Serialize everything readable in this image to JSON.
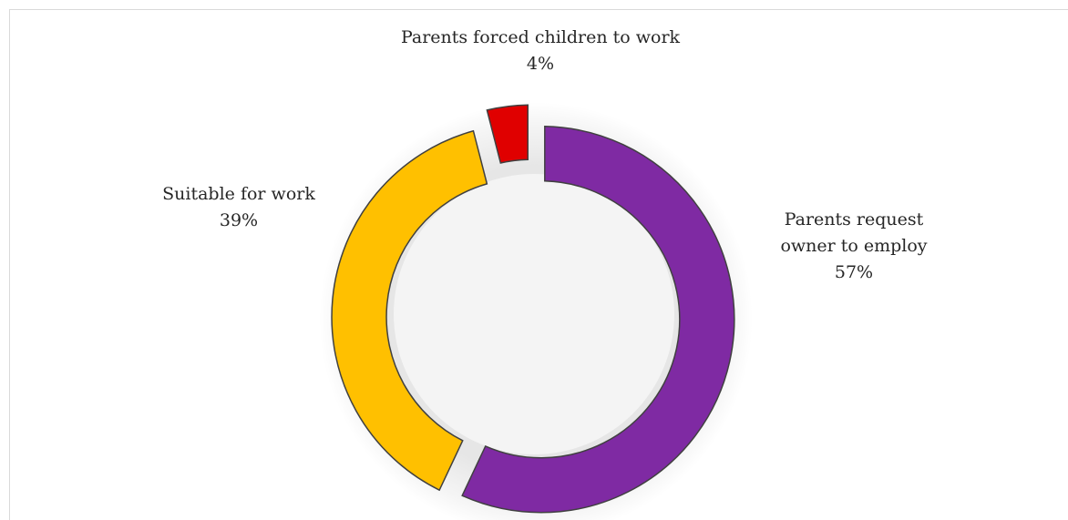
{
  "chart_data": {
    "type": "pie",
    "variant": "donut",
    "title": "",
    "legend": "none",
    "slices": [
      {
        "label": "Parents request owner to employ",
        "label_lines": [
          "Parents request",
          "owner to employ"
        ],
        "value": 57,
        "value_text": "57%",
        "color": "#7f2aa3"
      },
      {
        "label": "Suitable for work",
        "label_lines": [
          "Suitable for work"
        ],
        "value": 39,
        "value_text": "39%",
        "color": "#ffc000"
      },
      {
        "label": "Parents forced children to work",
        "label_lines": [
          "Parents forced children to work"
        ],
        "value": 4,
        "value_text": "4%",
        "color": "#e00000"
      }
    ]
  }
}
